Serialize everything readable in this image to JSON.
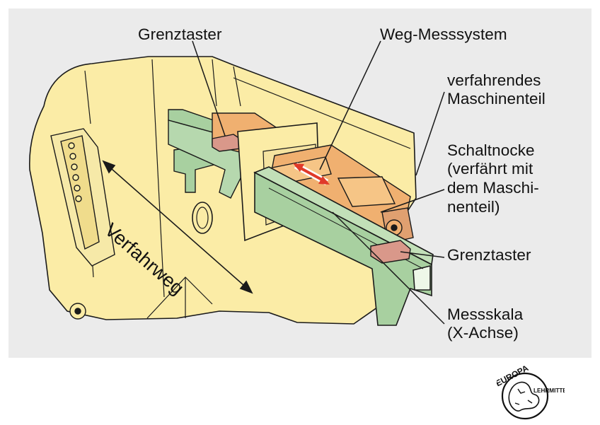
{
  "colors": {
    "panel_background": "#ebebeb",
    "machine_body": "#fbeca6",
    "moving_part": "#f0b070",
    "scale_rail": "#a8d0a0",
    "limit_switch": "#d9988a",
    "outline": "#1a1a1a"
  },
  "labels": {
    "grenztaster_top": "Grenztaster",
    "weg_messsystem": "Weg-Messsystem",
    "maschinenteil": [
      "verfahrendes",
      "Maschinenteil"
    ],
    "schaltnocke": [
      "Schaltnocke",
      "(verfährt mit",
      "dem Maschi-",
      "nenteil)"
    ],
    "grenztaster_right": "Grenztaster",
    "messskala": [
      "Messskala",
      "(X-Achse)"
    ],
    "verfahrweg": "Verfahrweg"
  },
  "logo": {
    "top_text": "EUROPA",
    "right_text": "LEHRMITTEL"
  }
}
